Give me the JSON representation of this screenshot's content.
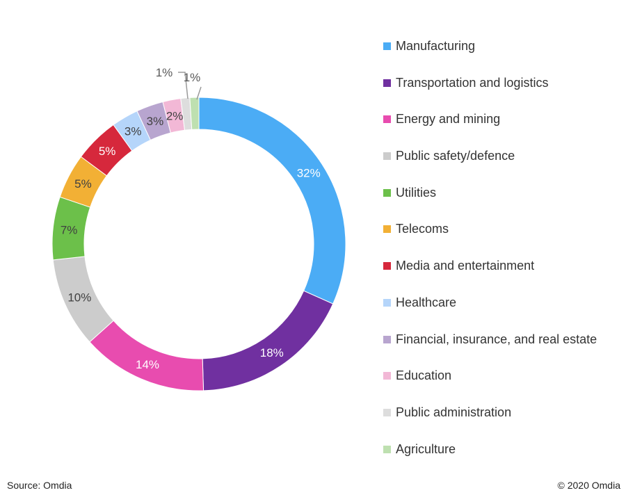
{
  "chart_data": {
    "type": "pie",
    "variant": "donut",
    "title": "",
    "categories": [
      "Manufacturing",
      "Transportation and logistics",
      "Energy and mining",
      "Public safety/defence",
      "Utilities",
      "Telecoms",
      "Media and entertainment",
      "Healthcare",
      "Financial, insurance, and real estate",
      "Education",
      "Public administration",
      "Agriculture"
    ],
    "values": [
      32,
      18,
      14,
      10,
      7,
      5,
      5,
      3,
      3,
      2,
      1,
      1
    ],
    "labels": [
      "32%",
      "18%",
      "14%",
      "10%",
      "7%",
      "5%",
      "5%",
      "3%",
      "3%",
      "2%",
      "1%",
      "1%"
    ],
    "colors": [
      "#4BACF5",
      "#7030A0",
      "#E84CAF",
      "#CCCCCC",
      "#6CC04A",
      "#F2B035",
      "#D6283C",
      "#B5D5FA",
      "#B8A5CF",
      "#F2B8D6",
      "#DDDDDD",
      "#BEE0B0"
    ],
    "label_colors": [
      "#ffffff",
      "#ffffff",
      "#ffffff",
      "#404040",
      "#404040",
      "#404040",
      "#ffffff",
      "#404040",
      "#404040",
      "#404040",
      "#404040",
      "#404040"
    ],
    "legend_position": "right"
  },
  "footer": {
    "source": "Source: Omdia",
    "copyright": "© 2020 Omdia"
  }
}
